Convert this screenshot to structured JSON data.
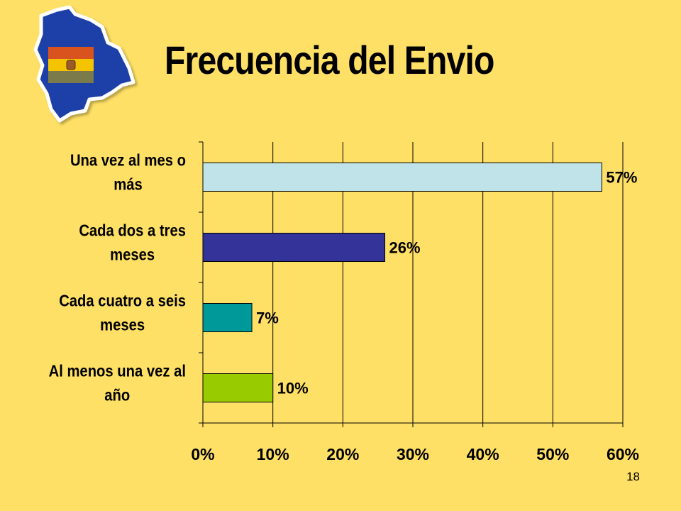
{
  "slide": {
    "title": "Frecuencia del Envio",
    "page_number": "18",
    "logo_icon": "bolivia-map-flag-icon",
    "flag_colors": [
      "#D8531E",
      "#F5C400",
      "#7A7A4A"
    ],
    "map_color": "#1E3FA8"
  },
  "chart_data": {
    "type": "bar",
    "orientation": "horizontal",
    "categories": [
      [
        "Una vez al mes o",
        "más"
      ],
      [
        "Cada dos a tres",
        "meses"
      ],
      [
        "Cada cuatro a seis",
        "meses"
      ],
      [
        "Al menos una vez al",
        "año"
      ]
    ],
    "values": [
      57,
      26,
      7,
      10
    ],
    "data_labels": [
      "57%",
      "26%",
      "7%",
      "10%"
    ],
    "bar_colors": [
      "#BFE3E8",
      "#333399",
      "#009999",
      "#99CC00"
    ],
    "xlim": [
      0,
      60
    ],
    "xticks": [
      0,
      10,
      20,
      30,
      40,
      50,
      60
    ],
    "xtick_labels": [
      "0%",
      "10%",
      "20%",
      "30%",
      "40%",
      "50%",
      "60%"
    ],
    "grid": true,
    "legend": "none",
    "xlabel": "",
    "ylabel": ""
  }
}
